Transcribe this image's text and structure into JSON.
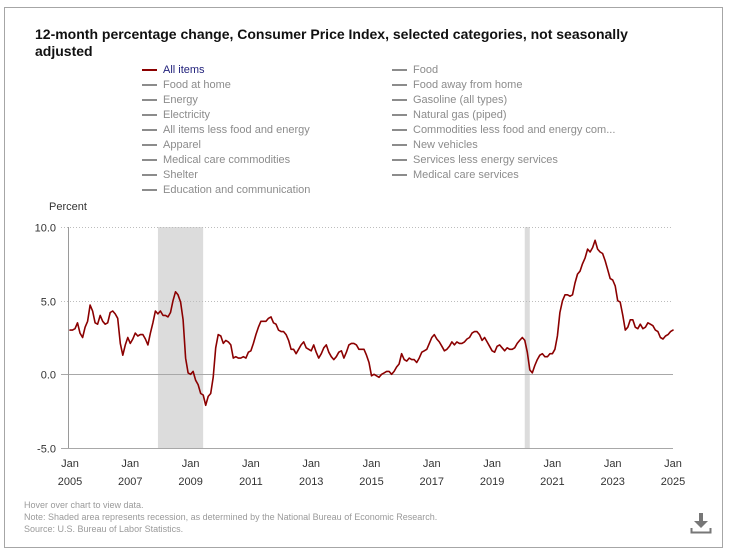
{
  "chart_data": {
    "type": "line",
    "title": "12-month percentage change, Consumer Price Index, selected categories, not seasonally adjusted",
    "xlabel": "",
    "ylabel": "Percent",
    "ylim": [
      -5,
      10
    ],
    "grid": true,
    "frequency": "monthly",
    "x_start": "2005-01",
    "x_end": "2025-01",
    "yticks": [
      {
        "value": 10,
        "label": "10.0"
      },
      {
        "value": 5,
        "label": "5.0"
      },
      {
        "value": 0,
        "label": "0.0"
      },
      {
        "value": -5,
        "label": "-5.0"
      }
    ],
    "xticks": [
      {
        "date": "2005-01",
        "month": "Jan",
        "year": "2005"
      },
      {
        "date": "2007-01",
        "month": "Jan",
        "year": "2007"
      },
      {
        "date": "2009-01",
        "month": "Jan",
        "year": "2009"
      },
      {
        "date": "2011-01",
        "month": "Jan",
        "year": "2011"
      },
      {
        "date": "2013-01",
        "month": "Jan",
        "year": "2013"
      },
      {
        "date": "2015-01",
        "month": "Jan",
        "year": "2015"
      },
      {
        "date": "2017-01",
        "month": "Jan",
        "year": "2017"
      },
      {
        "date": "2019-01",
        "month": "Jan",
        "year": "2019"
      },
      {
        "date": "2021-01",
        "month": "Jan",
        "year": "2021"
      },
      {
        "date": "2023-01",
        "month": "Jan",
        "year": "2023"
      },
      {
        "date": "2025-01",
        "month": "Jan",
        "year": "2025"
      }
    ],
    "recession_color": "#dcdcdc",
    "recessions": [
      {
        "start": "2007-12",
        "end": "2009-06"
      },
      {
        "start": "2020-02",
        "end": "2020-04"
      }
    ],
    "series": [
      {
        "name": "All items",
        "color": "#8b0000",
        "values": [
          3.0,
          3.0,
          3.1,
          3.5,
          2.8,
          2.5,
          3.2,
          3.6,
          4.7,
          4.3,
          3.5,
          3.4,
          4.0,
          3.6,
          3.4,
          3.5,
          4.2,
          4.3,
          4.1,
          3.8,
          2.1,
          1.3,
          2.0,
          2.5,
          2.1,
          2.4,
          2.8,
          2.6,
          2.7,
          2.7,
          2.4,
          2.0,
          2.8,
          3.5,
          4.3,
          4.1,
          4.3,
          4.0,
          4.0,
          3.9,
          4.2,
          5.0,
          5.6,
          5.4,
          4.9,
          3.7,
          1.1,
          0.1,
          0.0,
          0.2,
          -0.4,
          -0.7,
          -1.3,
          -1.4,
          -2.1,
          -1.5,
          -1.3,
          -0.2,
          1.8,
          2.7,
          2.6,
          2.1,
          2.3,
          2.2,
          2.0,
          1.1,
          1.2,
          1.1,
          1.1,
          1.2,
          1.1,
          1.5,
          1.6,
          2.1,
          2.7,
          3.2,
          3.6,
          3.6,
          3.6,
          3.8,
          3.9,
          3.5,
          3.4,
          3.0,
          2.9,
          2.9,
          2.7,
          2.3,
          1.7,
          1.7,
          1.4,
          1.7,
          2.0,
          2.2,
          1.8,
          1.7,
          1.6,
          2.0,
          1.5,
          1.1,
          1.4,
          1.8,
          2.0,
          1.5,
          1.2,
          1.0,
          1.2,
          1.5,
          1.6,
          1.1,
          1.5,
          2.0,
          2.1,
          2.1,
          2.0,
          1.7,
          1.7,
          1.7,
          1.3,
          0.8,
          -0.1,
          0.0,
          -0.1,
          -0.2,
          0.0,
          0.1,
          0.2,
          0.2,
          0.0,
          0.2,
          0.5,
          0.7,
          1.4,
          1.0,
          0.9,
          1.1,
          1.0,
          1.0,
          0.8,
          1.1,
          1.5,
          1.6,
          1.7,
          2.1,
          2.5,
          2.7,
          2.4,
          2.2,
          1.9,
          1.6,
          1.7,
          1.9,
          2.2,
          2.0,
          2.2,
          2.1,
          2.1,
          2.2,
          2.4,
          2.5,
          2.8,
          2.9,
          2.9,
          2.7,
          2.3,
          2.5,
          2.2,
          1.9,
          1.6,
          1.5,
          1.9,
          2.0,
          1.8,
          1.6,
          1.8,
          1.7,
          1.7,
          1.8,
          2.1,
          2.3,
          2.5,
          2.3,
          1.5,
          0.3,
          0.1,
          0.6,
          1.0,
          1.3,
          1.4,
          1.2,
          1.2,
          1.4,
          1.4,
          1.7,
          2.6,
          4.2,
          5.0,
          5.4,
          5.4,
          5.3,
          5.4,
          6.2,
          6.8,
          7.0,
          7.5,
          7.9,
          8.5,
          8.3,
          8.6,
          9.1,
          8.5,
          8.3,
          8.2,
          7.7,
          7.1,
          6.5,
          6.4,
          6.0,
          5.0,
          4.9,
          4.0,
          3.0,
          3.2,
          3.7,
          3.7,
          3.2,
          3.1,
          3.4,
          3.1,
          3.2,
          3.5,
          3.4,
          3.3,
          3.0,
          2.9,
          2.5,
          2.4,
          2.6,
          2.7,
          2.9,
          3.0
        ]
      }
    ],
    "legend": {
      "placement": "top",
      "active_text_color": "#1f1f7a",
      "inactive_color": "#8c8c8c",
      "items": [
        {
          "label": "All items",
          "active": true
        },
        {
          "label": "Food",
          "active": false
        },
        {
          "label": "Food at home",
          "active": false
        },
        {
          "label": "Food away from home",
          "active": false
        },
        {
          "label": "Energy",
          "active": false
        },
        {
          "label": "Gasoline (all types)",
          "active": false
        },
        {
          "label": "Electricity",
          "active": false
        },
        {
          "label": "Natural gas (piped)",
          "active": false
        },
        {
          "label": "All items less food and energy",
          "active": false
        },
        {
          "label": "Commodities less food and energy com...",
          "active": false
        },
        {
          "label": "Apparel",
          "active": false
        },
        {
          "label": "New vehicles",
          "active": false
        },
        {
          "label": "Medical care commodities",
          "active": false
        },
        {
          "label": "Services less energy services",
          "active": false
        },
        {
          "label": "Shelter",
          "active": false
        },
        {
          "label": "Medical care services",
          "active": false
        },
        {
          "label": "Education and communication",
          "active": false
        }
      ]
    }
  },
  "footer": {
    "hover_hint": "Hover over chart to view data.",
    "note": "Note: Shaded area represents recession, as determined by the National Bureau of Economic Research.",
    "source": "Source: U.S. Bureau of Labor Statistics."
  },
  "toolbar": {
    "download_icon": "download-icon",
    "icon_color": "#777777"
  }
}
